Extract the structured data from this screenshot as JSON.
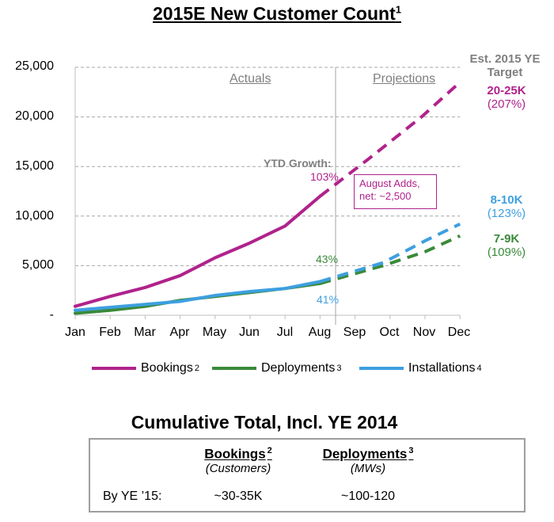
{
  "title": "2015E New Customer Count",
  "title_footnote": "1",
  "chart_data": {
    "type": "line",
    "categories": [
      "Jan",
      "Feb",
      "Mar",
      "Apr",
      "May",
      "Jun",
      "Jul",
      "Aug",
      "Sep",
      "Oct",
      "Nov",
      "Dec"
    ],
    "ylim": [
      0,
      25000
    ],
    "yticks": [
      0,
      5000,
      10000,
      15000,
      20000,
      25000
    ],
    "ytick_labels": [
      "-",
      "5,000",
      "10,000",
      "15,000",
      "20,000",
      "25,000"
    ],
    "series": [
      {
        "name": "Bookings",
        "footnote": "2",
        "color": "#b0228c",
        "actual": [
          900,
          1900,
          2800,
          4000,
          5800,
          7300,
          9000,
          12000
        ],
        "projected": [
          12000,
          15800,
          20000,
          23500
        ]
      },
      {
        "name": "Deployments",
        "footnote": "3",
        "color": "#3a8a3a",
        "actual": [
          200,
          500,
          900,
          1500,
          1900,
          2300,
          2700,
          3200
        ],
        "projected": [
          3200,
          5000,
          6400,
          8000
        ]
      },
      {
        "name": "Installations",
        "footnote": "4",
        "color": "#3d9fe0",
        "actual": [
          500,
          800,
          1100,
          1400,
          2000,
          2400,
          2700,
          3400
        ],
        "projected": [
          3400,
          5300,
          7500,
          9200
        ]
      }
    ],
    "section_labels": {
      "actuals": "Actuals",
      "projections": "Projections"
    },
    "ytd_growth_label": "YTD Growth:",
    "ytd_growth": {
      "bookings": "103%",
      "deployments": "43%",
      "installations": "41%"
    },
    "callout": {
      "line1": "August Adds,",
      "line2": "net: ~2,500"
    },
    "target_header": {
      "line1": "Est. 2015 YE",
      "line2": "Target"
    },
    "targets": [
      {
        "value": "20-25K",
        "pct": "(207%)",
        "color": "#b0228c"
      },
      {
        "value": "8-10K",
        "pct": "(123%)",
        "color": "#3d9fe0"
      },
      {
        "value": "7-9K",
        "pct": "(109%)",
        "color": "#3a8a3a"
      }
    ],
    "legend_placement": "bottom",
    "grid": true
  },
  "summary": {
    "title": "Cumulative Total, Incl. YE 2014",
    "col1": {
      "head": "Bookings",
      "footnote": "2",
      "sub": "(Customers)"
    },
    "col2": {
      "head": "Deployments",
      "footnote": "3",
      "sub": "(MWs)"
    },
    "row_label": "By YE ’15:",
    "row_values": [
      "~30-35K",
      "~100-120"
    ]
  }
}
